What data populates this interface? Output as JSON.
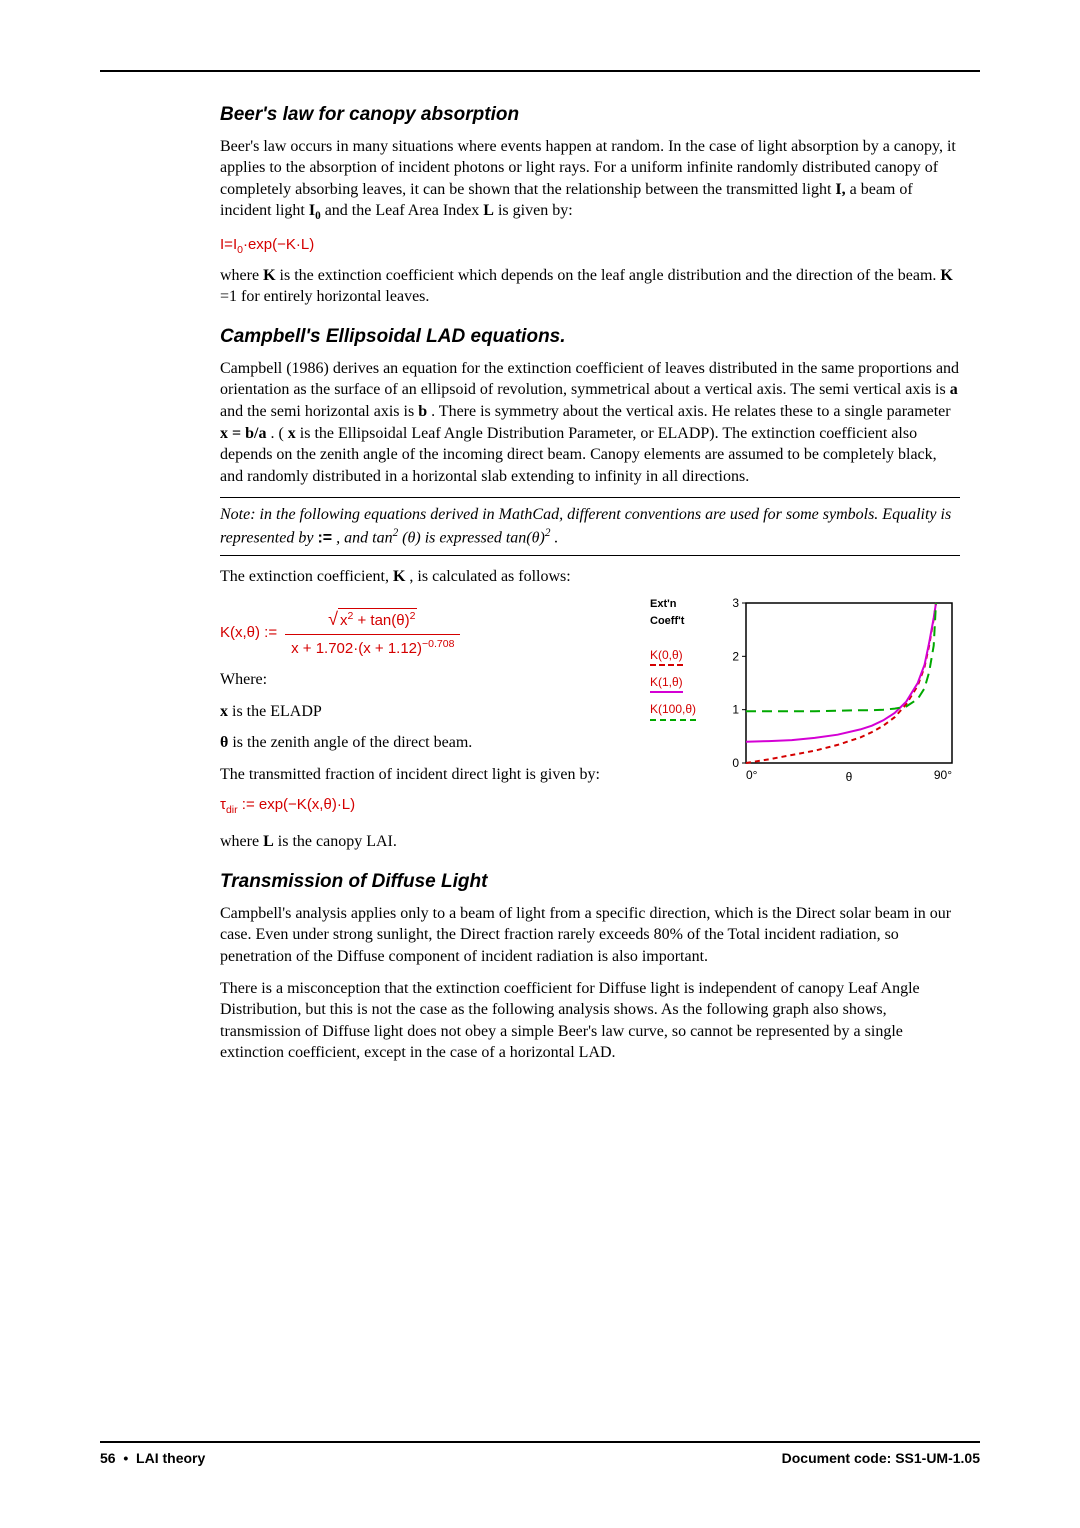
{
  "headings": {
    "h1": "Beer's law for canopy absorption",
    "h2": "Campbell's Ellipsoidal LAD equations.",
    "h3": "Transmission of Diffuse Light"
  },
  "paragraphs": {
    "p1a": "Beer's law occurs in many situations where events happen at random. In the case of light absorption by a canopy, it applies to the absorption of incident photons or light rays. For a uniform infinite randomly distributed canopy of completely absorbing leaves, it can be shown that the relationship between the transmitted light ",
    "p1b": " a beam of incident light ",
    "p1c": " and the Leaf Area Index ",
    "p1d": " is given by:",
    "sym_I": "I,",
    "sym_I0": "I",
    "sym_I0_sub": "0",
    "sym_L": "L",
    "eq1_lhs": "I=",
    "eq1_rhs": "·exp(−K·L)",
    "p2a": "where ",
    "p2b": " is the extinction coefficient which depends on the leaf angle distribution and the direction of the beam. ",
    "p2c": "=1 for entirely horizontal leaves.",
    "sym_K": "K",
    "p3a": "Campbell (1986) derives an equation for the extinction coefficient of leaves distributed in the same proportions and orientation as the surface of an ellipsoid of revolution, symmetrical about a vertical axis. The semi vertical axis is ",
    "p3b": " and the semi horizontal axis is ",
    "p3c": " . There is symmetry about the vertical axis. He relates these to a single parameter ",
    "p3d": ". (",
    "p3e": " is the Ellipsoidal Leaf Angle Distribution Parameter, or ELADP). The extinction coefficient also depends on the zenith angle of the incoming direct beam. Canopy elements are assumed to be completely black, and randomly distributed in a horizontal slab extending to infinity in all directions.",
    "sym_a": "a",
    "sym_b": "b",
    "sym_xeq": "x = b/a",
    "sym_x": "x",
    "note_a": "Note: in the following equations derived in MathCad, different conventions are used for some symbols. Equality is represented by ",
    "note_b": ", and tan",
    "note_c": "(θ) is expressed tan(θ)",
    "note_d": ".",
    "note_assign": ":=",
    "note_sup2": "2",
    "p4a": "The extinction coefficient, ",
    "p4b": ", is calculated as follows:",
    "eqK_lhs": "K(x,θ) :=",
    "eqK_num_a": "x",
    "eqK_num_b": " + tan(θ)",
    "eqK_sup2": "2",
    "eqK_den": "x + 1.702·(x + 1.12)",
    "eqK_den_exp": "−0.708",
    "where_label": "Where:",
    "where_x": "   is the ELADP",
    "where_x_sym": "x",
    "where_theta": " is the zenith angle of the direct beam.",
    "where_theta_sym": "θ",
    "p5": "The transmitted fraction of incident direct light is given by:",
    "eq_tau": "τ",
    "eq_tau_sub": "dir",
    "eq_tau_rhs": " := exp(−K(x,θ)·L)",
    "p6a": "where ",
    "p6b": " is the canopy LAI.",
    "p7": "Campbell's analysis applies only to a beam of light from a specific direction, which is the Direct solar beam in our case. Even under strong sunlight, the Direct fraction rarely exceeds 80% of the Total incident radiation, so penetration of the Diffuse component of incident radiation is also important.",
    "p8": "There is a misconception that the extinction coefficient for Diffuse light is independent of canopy Leaf Angle Distribution, but this is not the case as the following analysis shows. As the following graph also shows, transmission of Diffuse light does not obey a simple Beer's law curve, so cannot be represented by a single extinction coefficient, except in the case of a horizontal LAD."
  },
  "chart": {
    "title_line1": "Ext'n",
    "title_line2": "Coeff't",
    "legend": [
      "K(0,θ)",
      "K(1,θ)",
      "K(100,θ)"
    ],
    "legend_colors": [
      "#d40000",
      "#d400d4",
      "#00a800"
    ],
    "legend_styles": [
      "dashed",
      "solid",
      "dashed"
    ],
    "axes": {
      "x_min": 0,
      "x_max": 90,
      "x_label_left": "0°",
      "x_label_right": "90°",
      "x_axis_label": "θ",
      "y_min": 0,
      "y_max": 3,
      "y_ticks": [
        0,
        1,
        2,
        3
      ]
    },
    "series": {
      "K0": {
        "color": "#d40000",
        "dash": "5,4",
        "width": 2,
        "points": [
          [
            0,
            0
          ],
          [
            10,
            0.07
          ],
          [
            20,
            0.15
          ],
          [
            30,
            0.23
          ],
          [
            40,
            0.34
          ],
          [
            50,
            0.48
          ],
          [
            55,
            0.58
          ],
          [
            60,
            0.7
          ],
          [
            65,
            0.86
          ],
          [
            70,
            1.1
          ],
          [
            75,
            1.45
          ],
          [
            78,
            1.8
          ],
          [
            80,
            2.2
          ],
          [
            82,
            2.7
          ],
          [
            83,
            3.0
          ]
        ]
      },
      "K1": {
        "color": "#d400d4",
        "dash": "none",
        "width": 2,
        "points": [
          [
            0,
            0.4
          ],
          [
            10,
            0.41
          ],
          [
            20,
            0.43
          ],
          [
            30,
            0.47
          ],
          [
            40,
            0.53
          ],
          [
            50,
            0.63
          ],
          [
            55,
            0.7
          ],
          [
            60,
            0.8
          ],
          [
            65,
            0.94
          ],
          [
            70,
            1.15
          ],
          [
            75,
            1.5
          ],
          [
            78,
            1.84
          ],
          [
            80,
            2.25
          ],
          [
            82,
            2.72
          ],
          [
            83,
            3.0
          ]
        ]
      },
      "K100": {
        "color": "#00a800",
        "dash": "10,6",
        "width": 2,
        "points": [
          [
            0,
            0.97
          ],
          [
            10,
            0.97
          ],
          [
            20,
            0.97
          ],
          [
            30,
            0.97
          ],
          [
            40,
            0.98
          ],
          [
            50,
            0.99
          ],
          [
            55,
            0.99
          ],
          [
            60,
            1.0
          ],
          [
            65,
            1.02
          ],
          [
            70,
            1.06
          ],
          [
            75,
            1.2
          ],
          [
            78,
            1.4
          ],
          [
            80,
            1.7
          ],
          [
            82,
            2.2
          ],
          [
            83,
            3.0
          ]
        ]
      }
    },
    "plot_bg": "#ffffff",
    "axis_color": "#000000",
    "tick_fontsize": 12
  },
  "footer": {
    "page_num": "56",
    "bullet": "•",
    "section": "LAI theory",
    "doc_code": "Document code: SS1-UM-1.05"
  }
}
